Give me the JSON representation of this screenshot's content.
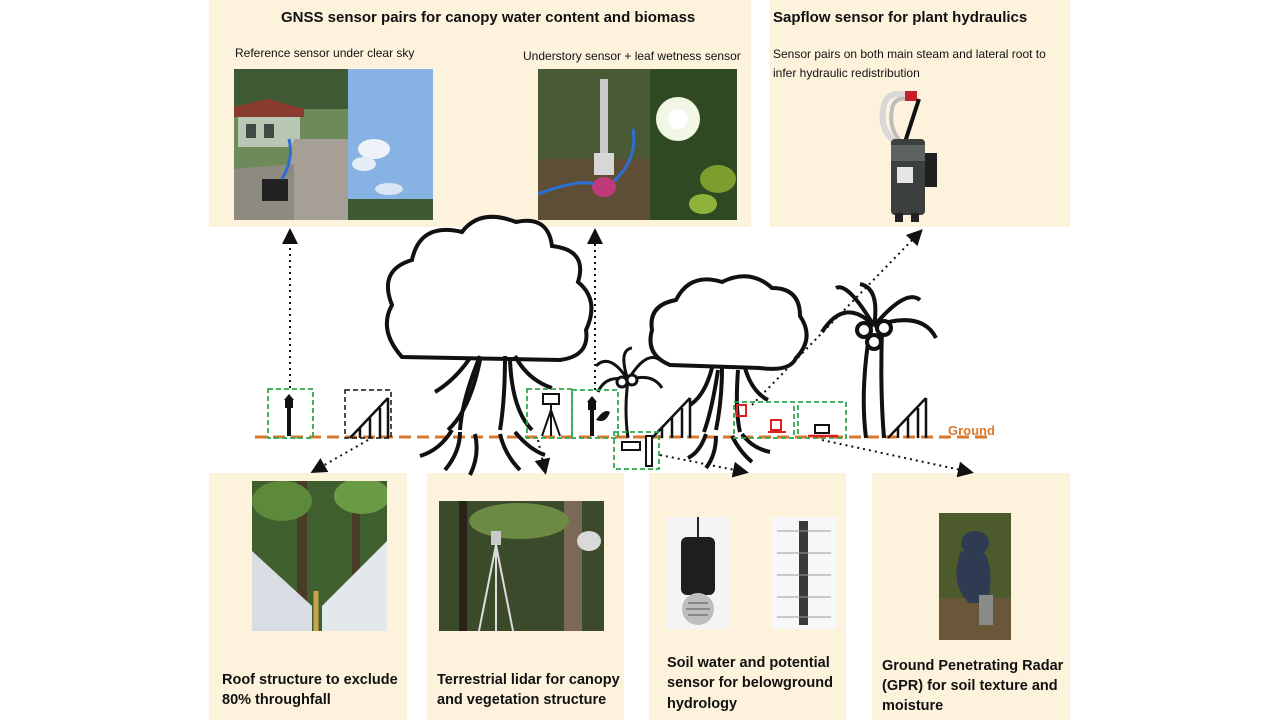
{
  "top_panels": {
    "gnss": {
      "title": "GNSS sensor pairs for canopy water content and biomass",
      "reference_caption": "Reference sensor under clear sky",
      "understory_caption": "Understory sensor  + leaf wetness sensor"
    },
    "sapflow": {
      "title": "Sapflow sensor for plant hydraulics",
      "caption_line1": "Sensor pairs on both main steam and lateral root to",
      "caption_line2": "infer hydraulic redistribution"
    }
  },
  "bottom_panels": {
    "roof": {
      "line1": "Roof structure to exclude",
      "line2": "80% throughfall"
    },
    "lidar": {
      "line1": "Terrestrial lidar for canopy",
      "line2": "and vegetation structure"
    },
    "soil": {
      "line1": "Soil water and potential",
      "line2": "sensor for belowground",
      "line3": "hydrology"
    },
    "gpr": {
      "line1": "Ground Penetrating Radar",
      "line2": "(GPR) for soil texture and",
      "line3": "moisture"
    }
  },
  "ground_label": "Ground",
  "colors": {
    "panel_bg": "#fdf3dd",
    "ground_line": "#d9782d",
    "sensor_box": "#2fa84f",
    "sensor_red": "#e02020"
  }
}
